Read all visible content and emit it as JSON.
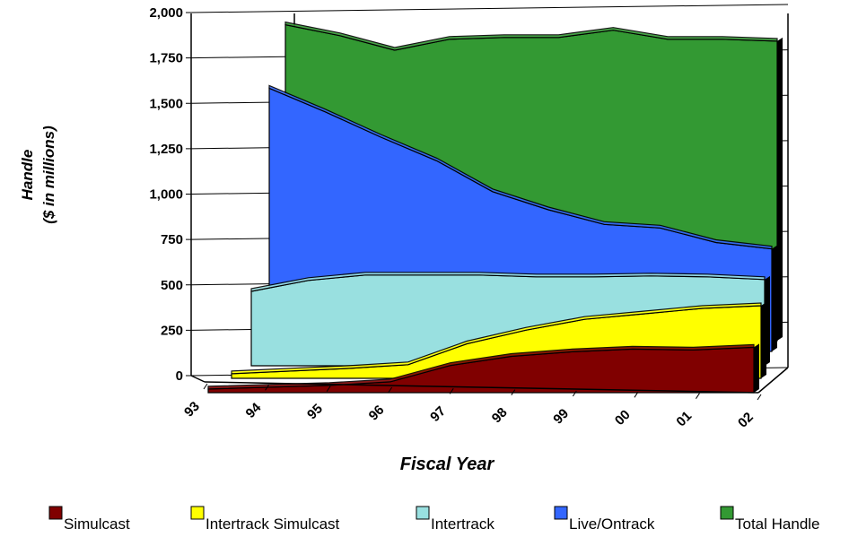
{
  "chart_data": {
    "type": "area",
    "title": "",
    "xlabel": "Fiscal Year",
    "ylabel_lines": [
      "Handle",
      "($ in millions)"
    ],
    "categories": [
      "93",
      "94",
      "95",
      "96",
      "97",
      "98",
      "99",
      "00",
      "01",
      "02"
    ],
    "yticks": [
      "0",
      "250",
      "500",
      "750",
      "1,000",
      "1,250",
      "1,500",
      "1,750",
      "2,000"
    ],
    "ylim": [
      0,
      2000
    ],
    "grid": true,
    "legend_position": "bottom",
    "series": [
      {
        "name": "Simulcast",
        "color": "#800000",
        "values": [
          20,
          30,
          40,
          60,
          150,
          200,
          225,
          240,
          235,
          250
        ]
      },
      {
        "name": "Intertrack Simulcast",
        "color": "#ffff00",
        "values": [
          25,
          40,
          55,
          75,
          190,
          265,
          325,
          355,
          385,
          400
        ]
      },
      {
        "name": "Intertrack",
        "color": "#99e0e0",
        "values": [
          410,
          470,
          500,
          500,
          500,
          490,
          490,
          495,
          490,
          475
        ]
      },
      {
        "name": "Live/Ontrack",
        "color": "#3366ff",
        "values": [
          1450,
          1320,
          1180,
          1050,
          880,
          780,
          700,
          680,
          600,
          565
        ]
      },
      {
        "name": "Total Handle",
        "color": "#339933",
        "values": [
          1740,
          1680,
          1600,
          1660,
          1670,
          1670,
          1710,
          1660,
          1660,
          1650
        ]
      }
    ]
  }
}
